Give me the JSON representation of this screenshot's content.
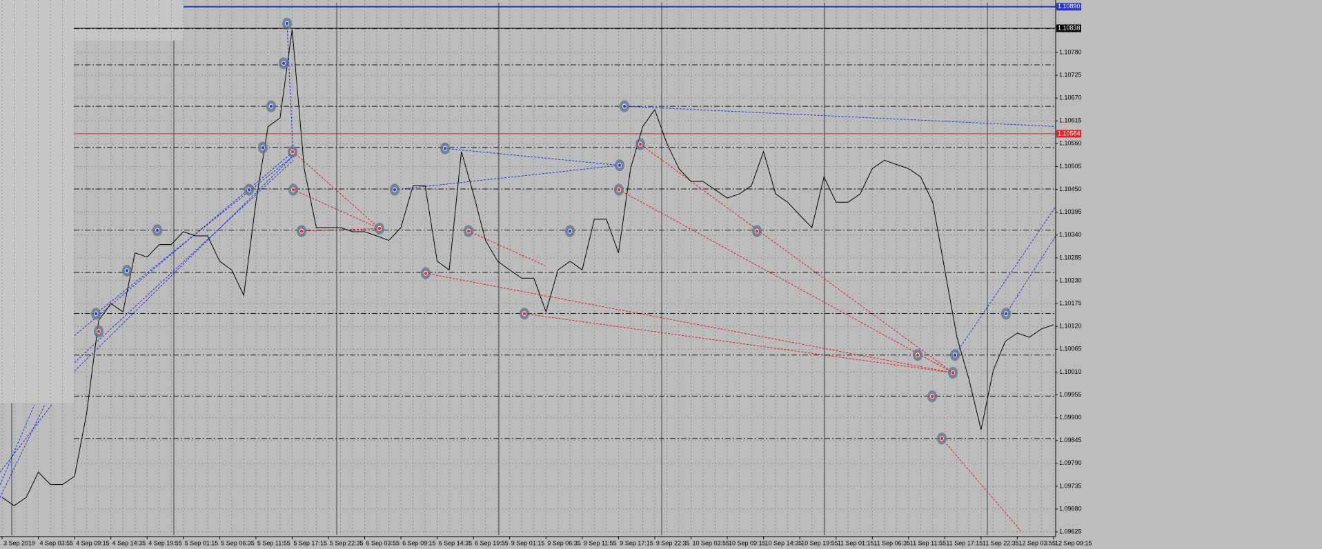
{
  "chart_data": {
    "type": "line",
    "categories": [
      "3 Sep 2019",
      null,
      null,
      "4 Sep 03:55",
      null,
      null,
      "4 Sep 09:15",
      null,
      null,
      "4 Sep 14:35",
      null,
      null,
      "4 Sep 19:55",
      null,
      null,
      "5 Sep 01:15",
      null,
      null,
      "5 Sep 06:35",
      null,
      null,
      "5 Sep 11:55",
      null,
      null,
      "5 Sep 17:15",
      null,
      null,
      "5 Sep 22:35",
      null,
      null,
      "6 Sep 03:55",
      null,
      null,
      "6 Sep 09:15",
      null,
      null,
      "6 Sep 14:35",
      null,
      null,
      "6 Sep 19:55",
      null,
      null,
      "9 Sep 01:15",
      null,
      null,
      "9 Sep 06:35",
      null,
      null,
      "9 Sep 11:55",
      null,
      null,
      "9 Sep 17:15",
      null,
      null,
      "9 Sep 22:35",
      null,
      null,
      "10 Sep 03:55",
      null,
      null,
      "10 Sep 09:15",
      null,
      null,
      "10 Sep 14:35",
      null,
      null,
      "10 Sep 19:55",
      null,
      null,
      "11 Sep 01:15",
      null,
      null,
      "11 Sep 06:35",
      null,
      null,
      "11 Sep 11:55",
      null,
      null,
      "11 Sep 17:15",
      null,
      null,
      "11 Sep 22:35",
      null,
      null,
      "12 Sep 03:55",
      null,
      null,
      "12 Sep 09:15"
    ],
    "series": [
      {
        "color": "#000000",
        "values": [
          1.09708,
          1.09688,
          1.09708,
          1.09769,
          1.09739,
          1.09739,
          1.09759,
          1.09911,
          1.10135,
          1.10175,
          1.10155,
          1.10297,
          1.10287,
          1.10317,
          1.10317,
          1.10348,
          1.10338,
          1.10338,
          1.10277,
          1.10256,
          1.10195,
          1.10419,
          1.10601,
          1.10622,
          1.10835,
          1.105,
          1.10358,
          1.10358,
          1.10358,
          1.10348,
          1.10348,
          1.10338,
          1.10327,
          1.10358,
          1.10459,
          1.10459,
          1.10277,
          1.10256,
          1.10541,
          1.10439,
          1.10327,
          1.10277,
          1.10256,
          1.10236,
          1.10236,
          1.10155,
          1.10256,
          1.10277,
          1.10256,
          1.10378,
          1.10378,
          1.10297,
          1.105,
          1.10601,
          1.10642,
          1.10561,
          1.105,
          1.10469,
          1.10469,
          1.10449,
          1.10429,
          1.10439,
          1.10459,
          1.10541,
          1.10439,
          1.10419,
          1.10388,
          1.10358,
          1.1048,
          1.10419,
          1.10419,
          1.10439,
          1.105,
          1.1052,
          1.1051,
          1.105,
          1.1048,
          1.10419,
          1.10256,
          1.10094,
          1.09992,
          1.09871,
          1.10013,
          1.10084,
          1.10104,
          1.10094,
          1.10114,
          1.10124
        ]
      }
    ],
    "ylim": [
      1.09617,
      1.109
    ],
    "yticks": [
      {
        "value": 1.1078,
        "label": "1.10780"
      },
      {
        "value": 1.10725,
        "label": "1.10725"
      },
      {
        "value": 1.1067,
        "label": "1.10670"
      },
      {
        "value": 1.10615,
        "label": "1.10615"
      },
      {
        "value": 1.1056,
        "label": "1.10560"
      },
      {
        "value": 1.10505,
        "label": "1.10505"
      },
      {
        "value": 1.1045,
        "label": "1.10450"
      },
      {
        "value": 1.10395,
        "label": "1.10395"
      },
      {
        "value": 1.1034,
        "label": "1.10340"
      },
      {
        "value": 1.10285,
        "label": "1.10285"
      },
      {
        "value": 1.1023,
        "label": "1.10230"
      },
      {
        "value": 1.10175,
        "label": "1.10175"
      },
      {
        "value": 1.1012,
        "label": "1.10120"
      },
      {
        "value": 1.10065,
        "label": "1.10065"
      },
      {
        "value": 1.1001,
        "label": "1.10010"
      },
      {
        "value": 1.09955,
        "label": "1.09955"
      },
      {
        "value": 1.099,
        "label": "1.09900"
      },
      {
        "value": 1.09845,
        "label": "1.09845"
      },
      {
        "value": 1.0979,
        "label": "1.09790"
      },
      {
        "value": 1.09735,
        "label": "1.09735"
      },
      {
        "value": 1.0968,
        "label": "1.09680"
      },
      {
        "value": 1.09625,
        "label": "1.09625"
      }
    ],
    "grid": true,
    "levels": [
      1.10837,
      1.1075,
      1.1065,
      1.10551,
      1.10451,
      1.10352,
      1.1025,
      1.10151,
      1.10051,
      1.09952,
      1.0985
    ],
    "price_lines": [
      {
        "value": 1.1089,
        "label": "1.10890",
        "color": "#2b34c8"
      },
      {
        "value": 1.10838,
        "label": "1.10838",
        "color": "#000000"
      },
      {
        "value": 1.10584,
        "label": "1.10584",
        "color": "#e0202a"
      }
    ]
  }
}
